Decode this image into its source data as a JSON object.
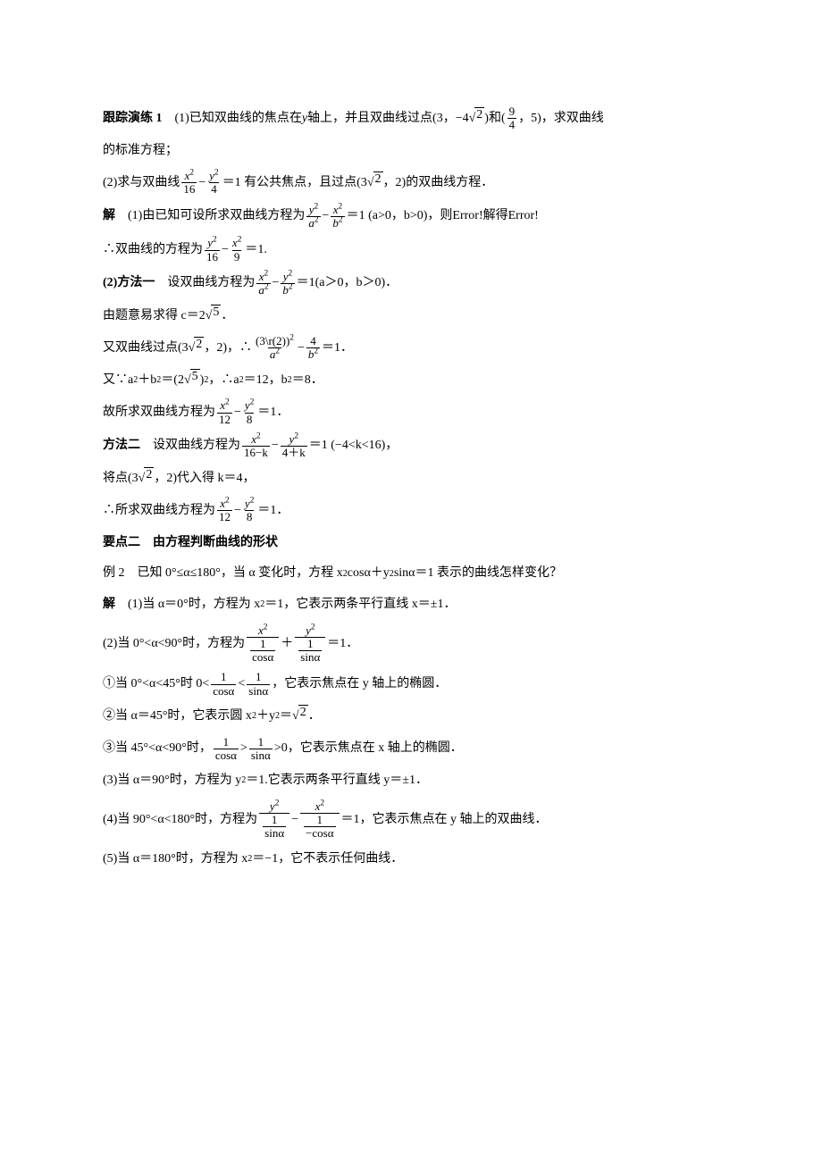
{
  "lines": {
    "l1_label": "跟踪演练 1",
    "l1_a": "　(1)已知双曲线的焦点在 ",
    "l1_b": " 轴上，并且双曲线过点(3，−4",
    "l1_sqrt": "2",
    "l1_c": ")和(",
    "l1_frac_num": "9",
    "l1_frac_den": "4",
    "l1_d": "，5)，求双曲线",
    "l2": "的标准方程；",
    "l3_a": "(2)求与双曲线",
    "l3_f1n": "x",
    "l3_f1d": "16",
    "l3_f2n": "y",
    "l3_f2d": "4",
    "l3_b": "＝1 有公共焦点，且过点(3",
    "l3_sqrt": "2",
    "l3_c": "，2)的双曲线方程．",
    "l4_label": "解",
    "l4_a": "　(1)由已知可设所求双曲线方程为",
    "l4_f1n": "y",
    "l4_f1d": "a",
    "l4_f2n": "x",
    "l4_f2d": "b",
    "l4_b": "＝1 (a>0，b>0)，则",
    "l4_err1": "Error!",
    "l4_c": "解得",
    "l4_err2": "Error!",
    "l5_a": "∴双曲线的方程为",
    "l5_f1n": "y",
    "l5_f1d": "16",
    "l5_f2n": "x",
    "l5_f2d": "9",
    "l5_b": "＝1.",
    "l6_label": "(2)方法一",
    "l6_a": "　设双曲线方程为",
    "l6_f1n": "x",
    "l6_f1d": "a",
    "l6_f2n": "y",
    "l6_f2d": "b",
    "l6_b": "＝1(a＞0，b＞0)．",
    "l7_a": "由题意易求得 c＝2",
    "l7_sqrt": "5",
    "l7_b": "．",
    "l8_a": "又双曲线过点(3",
    "l8_sqrt": "2",
    "l8_b": "，2)，∴",
    "l8_f1n": "(3\\r(2))",
    "l8_f1d": "a",
    "l8_f2n": "4",
    "l8_f2d": "b",
    "l8_c": "＝1．",
    "l9_a": "又∵a",
    "l9_b": "＋b",
    "l9_c": "＝(2",
    "l9_sqrt": "5",
    "l9_d": ")",
    "l9_e": "，∴a",
    "l9_f": "＝12，b",
    "l9_g": "＝8．",
    "l10_a": "故所求双曲线方程为",
    "l10_f1n": "x",
    "l10_f1d": "12",
    "l10_f2n": "y",
    "l10_f2d": "8",
    "l10_b": "＝1．",
    "l11_label": "方法二",
    "l11_a": "　设双曲线方程为",
    "l11_f1n": "x",
    "l11_f1d": "16−k",
    "l11_f2n": "y",
    "l11_f2d": "4＋k",
    "l11_b": "＝1 (−4<k<16)，",
    "l12_a": "将点(3",
    "l12_sqrt": "2",
    "l12_b": "，2)代入得 k＝4，",
    "l13_a": "∴所求双曲线方程为",
    "l13_f1n": "x",
    "l13_f1d": "12",
    "l13_f2n": "y",
    "l13_f2d": "8",
    "l13_b": "＝1．",
    "h2": "要点二　由方程判断曲线的形状",
    "l14_a": "例 2　已知 0°≤α≤180°，当 α 变化时，方程 x",
    "l14_b": "cosα＋y",
    "l14_c": "sinα＝1 表示的曲线怎样变化？",
    "l15_label": "解",
    "l15_a": "　(1)当 α＝0°时，方程为 x",
    "l15_b": "＝1，它表示两条平行直线 x＝±1．",
    "l16_a": "(2)当 0°<α<90°时，方程为",
    "l16_f1n": "x",
    "l16_f1dn": "1",
    "l16_f1dd": "cosα",
    "l16_f2n": "y",
    "l16_f2dn": "1",
    "l16_f2dd": "sinα",
    "l16_b": "＝1．",
    "l17_a": "①当 0°<α<45°时 0<",
    "l17_f1n": "1",
    "l17_f1d": "cosα",
    "l17_f2n": "1",
    "l17_f2d": "sinα",
    "l17_b": "，它表示焦点在 y 轴上的椭圆．",
    "l18_a": "②当 α＝45°时，它表示圆 x",
    "l18_b": "＋y",
    "l18_c": "＝",
    "l18_sqrt": "2",
    "l18_d": "．",
    "l19_a": "③当 45°<α<90°时，",
    "l19_f1n": "1",
    "l19_f1d": "cosα",
    "l19_f2n": "1",
    "l19_f2d": "sinα",
    "l19_b": ">0，它表示焦点在 x 轴上的椭圆．",
    "l20_a": "(3)当 α＝90°时，方程为 y",
    "l20_b": "＝1.它表示两条平行直线 y＝±1．",
    "l21_a": "(4)当 90°<α<180°时，方程为",
    "l21_f1n": "y",
    "l21_f1dn": "1",
    "l21_f1dd": "sinα",
    "l21_f2n": "x",
    "l21_f2dn": "1",
    "l21_f2dd": "−cosα",
    "l21_b": "＝1，它表示焦点在 y 轴上的双曲线．",
    "l22_a": "(5)当 α＝180°时，方程为 x",
    "l22_b": "＝−1，它不表示任何曲线．"
  },
  "sup2": "2"
}
